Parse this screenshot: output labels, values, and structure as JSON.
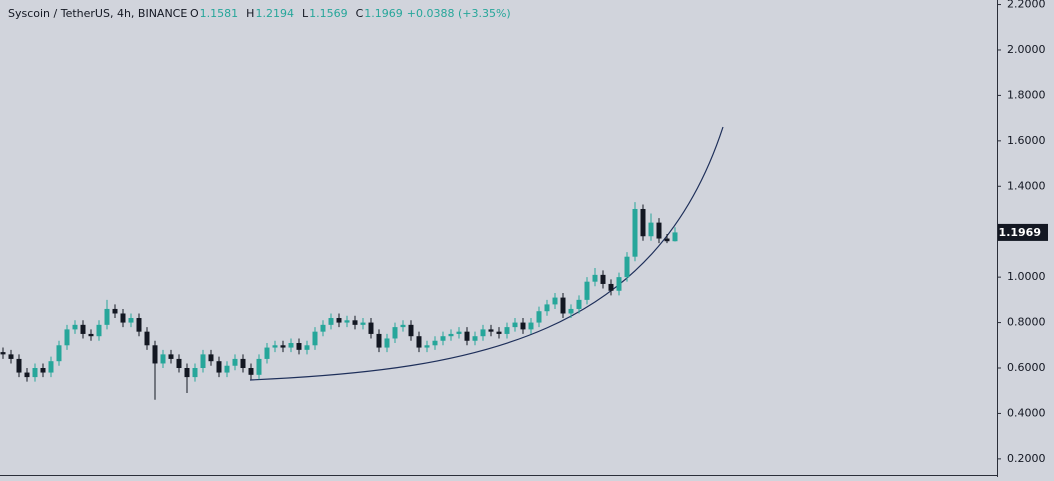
{
  "chart_data": {
    "type": "candlestick",
    "header": {
      "symbol": "Syscoin / TetherUS, 4h, BINANCE",
      "ohlc": [
        {
          "label": "O",
          "value": "1.1581"
        },
        {
          "label": "H",
          "value": "1.2194"
        },
        {
          "label": "L",
          "value": "1.1569"
        },
        {
          "label": "C",
          "value": "1.1969"
        }
      ],
      "change": "+0.0388 (+3.35%)"
    },
    "up_color": "#26a69a",
    "down_color": "#131722",
    "open": [
      0.67,
      0.66,
      0.64,
      0.58,
      0.56,
      0.6,
      0.58,
      0.63,
      0.7,
      0.77,
      0.79,
      0.75,
      0.74,
      0.79,
      0.86,
      0.84,
      0.8,
      0.82,
      0.76,
      0.7,
      0.62,
      0.66,
      0.64,
      0.6,
      0.56,
      0.6,
      0.66,
      0.63,
      0.58,
      0.61,
      0.64,
      0.6,
      0.57,
      0.64,
      0.69,
      0.7,
      0.69,
      0.71,
      0.68,
      0.7,
      0.76,
      0.79,
      0.82,
      0.8,
      0.81,
      0.79,
      0.8,
      0.75,
      0.69,
      0.73,
      0.78,
      0.79,
      0.74,
      0.69,
      0.7,
      0.72,
      0.74,
      0.75,
      0.76,
      0.72,
      0.74,
      0.77,
      0.76,
      0.75,
      0.78,
      0.8,
      0.77,
      0.8,
      0.85,
      0.88,
      0.91,
      0.84,
      0.86,
      0.9,
      0.98,
      1.01,
      0.97,
      0.94,
      1.0,
      1.09,
      1.3,
      1.18,
      1.24,
      1.17,
      1.1581
    ],
    "high": [
      0.69,
      0.68,
      0.66,
      0.6,
      0.62,
      0.62,
      0.65,
      0.72,
      0.79,
      0.81,
      0.81,
      0.77,
      0.81,
      0.9,
      0.88,
      0.86,
      0.84,
      0.84,
      0.78,
      0.72,
      0.68,
      0.68,
      0.66,
      0.62,
      0.62,
      0.68,
      0.68,
      0.65,
      0.63,
      0.66,
      0.66,
      0.62,
      0.66,
      0.71,
      0.72,
      0.72,
      0.73,
      0.73,
      0.72,
      0.78,
      0.81,
      0.84,
      0.84,
      0.83,
      0.83,
      0.82,
      0.82,
      0.77,
      0.75,
      0.8,
      0.81,
      0.81,
      0.76,
      0.72,
      0.74,
      0.76,
      0.77,
      0.78,
      0.78,
      0.76,
      0.79,
      0.79,
      0.78,
      0.8,
      0.82,
      0.82,
      0.82,
      0.87,
      0.9,
      0.93,
      0.93,
      0.88,
      0.92,
      1.0,
      1.04,
      1.03,
      0.99,
      1.02,
      1.11,
      1.33,
      1.32,
      1.28,
      1.26,
      1.19,
      1.2194
    ],
    "low": [
      0.64,
      0.62,
      0.56,
      0.54,
      0.54,
      0.56,
      0.56,
      0.61,
      0.68,
      0.75,
      0.73,
      0.72,
      0.72,
      0.77,
      0.82,
      0.78,
      0.78,
      0.74,
      0.68,
      0.46,
      0.6,
      0.62,
      0.58,
      0.49,
      0.54,
      0.58,
      0.61,
      0.56,
      0.56,
      0.59,
      0.58,
      0.55,
      0.55,
      0.62,
      0.67,
      0.67,
      0.67,
      0.66,
      0.66,
      0.68,
      0.74,
      0.77,
      0.78,
      0.78,
      0.77,
      0.77,
      0.73,
      0.67,
      0.67,
      0.71,
      0.76,
      0.72,
      0.67,
      0.67,
      0.68,
      0.7,
      0.72,
      0.73,
      0.7,
      0.7,
      0.72,
      0.74,
      0.73,
      0.73,
      0.76,
      0.75,
      0.75,
      0.78,
      0.83,
      0.86,
      0.82,
      0.82,
      0.84,
      0.88,
      0.96,
      0.95,
      0.92,
      0.92,
      0.98,
      1.07,
      1.16,
      1.16,
      1.15,
      1.15,
      1.1569
    ],
    "close": [
      0.66,
      0.64,
      0.58,
      0.56,
      0.6,
      0.58,
      0.63,
      0.7,
      0.77,
      0.79,
      0.75,
      0.74,
      0.79,
      0.86,
      0.84,
      0.8,
      0.82,
      0.76,
      0.7,
      0.62,
      0.66,
      0.64,
      0.6,
      0.56,
      0.6,
      0.66,
      0.63,
      0.58,
      0.61,
      0.64,
      0.6,
      0.57,
      0.64,
      0.69,
      0.7,
      0.69,
      0.71,
      0.68,
      0.7,
      0.76,
      0.79,
      0.82,
      0.8,
      0.81,
      0.79,
      0.8,
      0.75,
      0.69,
      0.73,
      0.78,
      0.79,
      0.74,
      0.69,
      0.7,
      0.72,
      0.74,
      0.75,
      0.76,
      0.72,
      0.74,
      0.77,
      0.76,
      0.75,
      0.78,
      0.8,
      0.77,
      0.8,
      0.85,
      0.88,
      0.91,
      0.84,
      0.86,
      0.9,
      0.98,
      1.01,
      0.97,
      0.94,
      1.0,
      1.09,
      1.3,
      1.18,
      1.24,
      1.17,
      1.1581,
      1.1969
    ],
    "ylim": [
      0.129,
      2.22
    ],
    "yticks": [
      {
        "value": 0.2,
        "label": "0.2000"
      },
      {
        "value": 0.4,
        "label": "0.4000"
      },
      {
        "value": 0.6,
        "label": "0.6000"
      },
      {
        "value": 0.8,
        "label": "0.8000"
      },
      {
        "value": 1.0,
        "label": "1.0000"
      },
      {
        "value": 1.2,
        "label": "1.2000"
      },
      {
        "value": 1.4,
        "label": "1.4000"
      },
      {
        "value": 1.6,
        "label": "1.6000"
      },
      {
        "value": 1.8,
        "label": "1.8000"
      },
      {
        "value": 2.0,
        "label": "2.0000"
      },
      {
        "value": 2.2,
        "label": "2.2000"
      }
    ],
    "grid": false
  }
}
